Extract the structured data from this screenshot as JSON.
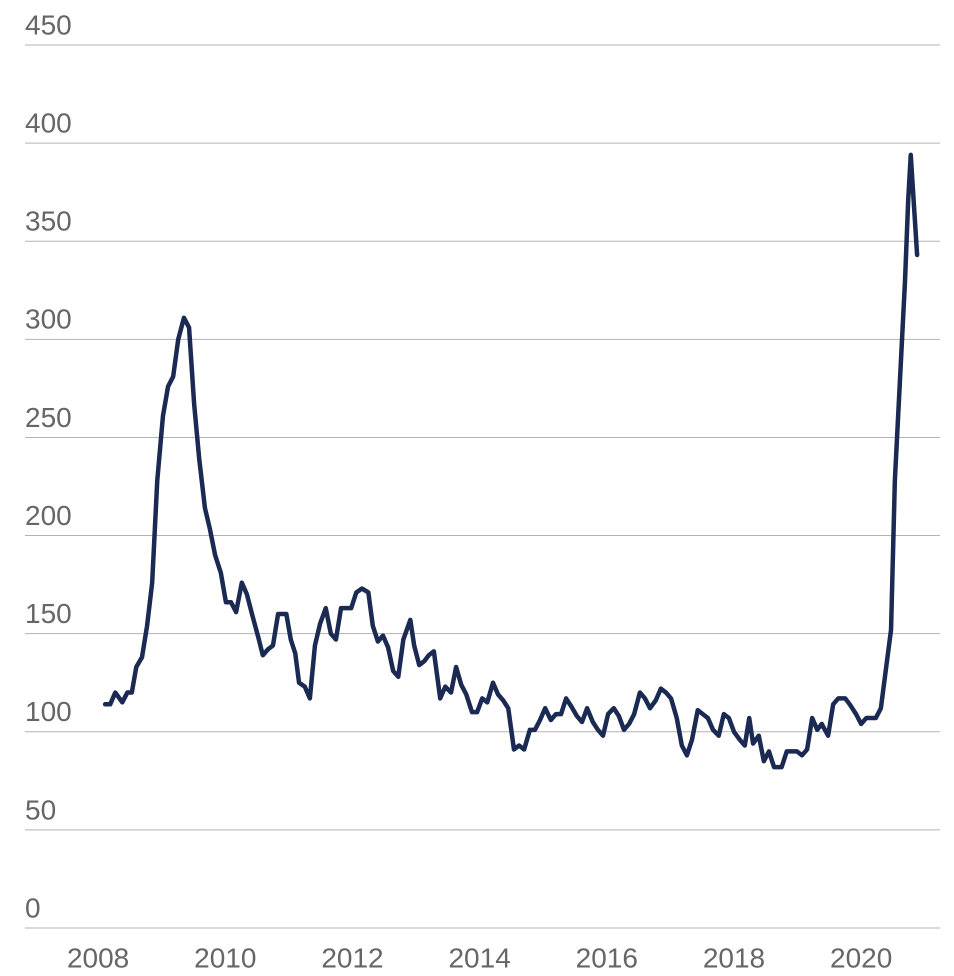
{
  "chart_data": {
    "type": "line",
    "x": [
      2008.11,
      2008.19,
      2008.27,
      2008.38,
      2008.46,
      2008.53,
      2008.6,
      2008.69,
      2008.77,
      2008.85,
      2008.93,
      2009.02,
      2009.1,
      2009.18,
      2009.26,
      2009.35,
      2009.43,
      2009.51,
      2009.59,
      2009.68,
      2009.76,
      2009.84,
      2009.93,
      2010.01,
      2010.09,
      2010.17,
      2010.26,
      2010.34,
      2010.42,
      2010.52,
      2010.59,
      2010.67,
      2010.75,
      2010.83,
      2010.96,
      2011.03,
      2011.1,
      2011.16,
      2011.25,
      2011.33,
      2011.41,
      2011.49,
      2011.58,
      2011.66,
      2011.74,
      2011.82,
      2011.98,
      2012.06,
      2012.15,
      2012.25,
      2012.32,
      2012.4,
      2012.48,
      2012.56,
      2012.64,
      2012.72,
      2012.8,
      2012.91,
      2012.97,
      2013.05,
      2013.13,
      2013.2,
      2013.28,
      2013.38,
      2013.46,
      2013.55,
      2013.63,
      2013.71,
      2013.79,
      2013.88,
      2013.96,
      2014.04,
      2014.12,
      2014.21,
      2014.29,
      2014.37,
      2014.45,
      2014.54,
      2014.62,
      2014.7,
      2014.79,
      2014.87,
      2014.95,
      2015.03,
      2015.12,
      2015.2,
      2015.28,
      2015.36,
      2015.44,
      2015.53,
      2015.61,
      2015.69,
      2015.78,
      2015.86,
      2015.94,
      2016.02,
      2016.11,
      2016.19,
      2016.27,
      2016.35,
      2016.43,
      2016.52,
      2016.6,
      2016.68,
      2016.77,
      2016.85,
      2016.93,
      2017.01,
      2017.1,
      2017.18,
      2017.26,
      2017.34,
      2017.43,
      2017.51,
      2017.59,
      2017.67,
      2017.76,
      2017.84,
      2017.92,
      2018.0,
      2018.09,
      2018.17,
      2018.24,
      2018.3,
      2018.39,
      2018.47,
      2018.55,
      2018.63,
      2018.75,
      2018.83,
      2018.99,
      2019.07,
      2019.15,
      2019.23,
      2019.31,
      2019.38,
      2019.48,
      2019.56,
      2019.64,
      2019.75,
      2019.82,
      2019.92,
      2020.0,
      2020.08,
      2020.23,
      2020.31,
      2020.39,
      2020.47,
      2020.53,
      2020.61,
      2020.69,
      2020.74,
      2020.78,
      2020.88
    ],
    "series": [
      {
        "color": "#1b2a52",
        "values": [
          114,
          114,
          120,
          115,
          120,
          120,
          133,
          138,
          154,
          176,
          228,
          261,
          276,
          281,
          300,
          311,
          306,
          267,
          239,
          214,
          203,
          190,
          181,
          166,
          166,
          161,
          176,
          170,
          160,
          148,
          139,
          142,
          144,
          160,
          160,
          147,
          140,
          125,
          123,
          117,
          144,
          155,
          163,
          150,
          147,
          163,
          163,
          171,
          173,
          171,
          154,
          146,
          149,
          143,
          131,
          128,
          147,
          157,
          144,
          134,
          136,
          139,
          141,
          117,
          123,
          120,
          133,
          124,
          119,
          110,
          110,
          117,
          115,
          125,
          119,
          116,
          112,
          91,
          93,
          91,
          101,
          101,
          106,
          112,
          106,
          109,
          109,
          117,
          113,
          108,
          105,
          112,
          105,
          101,
          98,
          109,
          112,
          108,
          101,
          104,
          109,
          120,
          117,
          112,
          116,
          122,
          120,
          117,
          107,
          93,
          88,
          96,
          111,
          109,
          107,
          101,
          98,
          109,
          107,
          100,
          96,
          93,
          107,
          94,
          98,
          85,
          90,
          82,
          82,
          90,
          90,
          88,
          91,
          107,
          101,
          104,
          98,
          114,
          117,
          117,
          114,
          109,
          104,
          107,
          107,
          112,
          132,
          152,
          228,
          279,
          330,
          371,
          394,
          343
        ]
      }
    ],
    "xlim": [
      2006.85,
      2021.24
    ],
    "xticks": [
      2008,
      2010,
      2012,
      2014,
      2016,
      2018,
      2020
    ],
    "ylim": [
      0,
      450
    ],
    "yticks": [
      0,
      50,
      100,
      150,
      200,
      250,
      300,
      350,
      400,
      450
    ],
    "grid": true
  }
}
